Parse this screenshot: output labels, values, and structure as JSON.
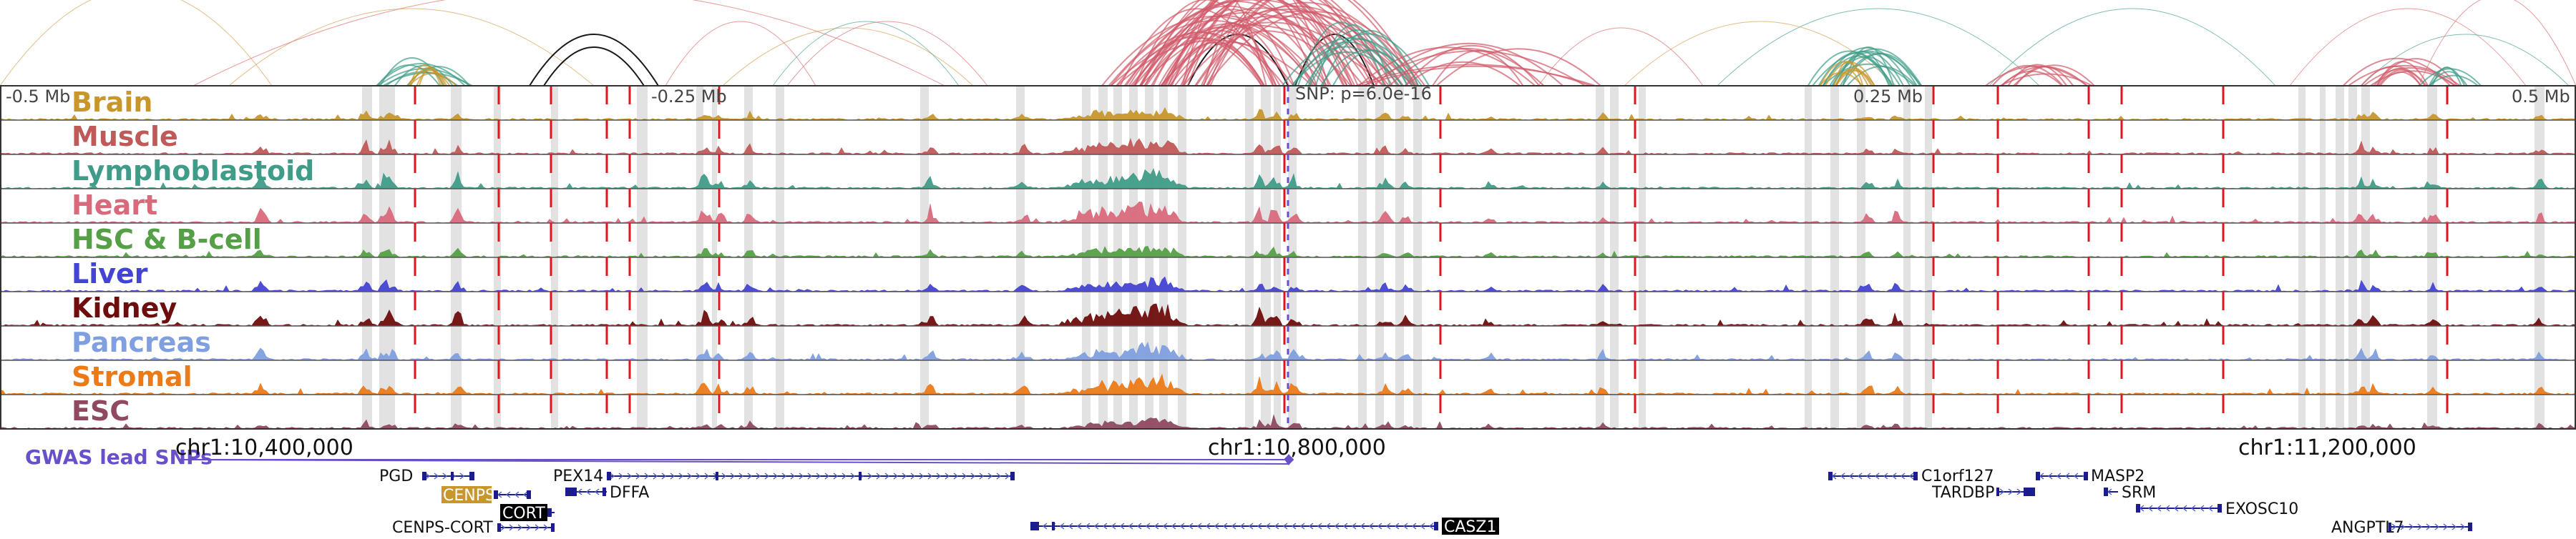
{
  "scale_labels": {
    "left": "-0.5 Mb",
    "mid_left": "-0.25 Mb",
    "snp": "SNP: p=6.0e-16",
    "mid_right": "0.25 Mb",
    "right": "0.5 Mb"
  },
  "tracks": [
    {
      "label": "Brain",
      "color": "#c8962a"
    },
    {
      "label": "Muscle",
      "color": "#c05a58"
    },
    {
      "label": "Lymphoblastoid",
      "color": "#3f9c88"
    },
    {
      "label": "Heart",
      "color": "#d96a7c"
    },
    {
      "label": "HSC & B-cell",
      "color": "#55a046"
    },
    {
      "label": "Liver",
      "color": "#4343d6"
    },
    {
      "label": "Kidney",
      "color": "#6e0d0d"
    },
    {
      "label": "Pancreas",
      "color": "#7f9fe0"
    },
    {
      "label": "Stromal",
      "color": "#ec7a17"
    },
    {
      "label": "ESC",
      "color": "#8f4a62"
    }
  ],
  "gwas_label": "GWAS lead SNPs",
  "coordinates": [
    "chr1:10,400,000",
    "chr1:10,800,000",
    "chr1:11,200,000"
  ],
  "genes": [
    {
      "name": "PGD",
      "highlight": false
    },
    {
      "name": "CENPS",
      "highlight": true,
      "highlight_color": "#c8962a"
    },
    {
      "name": "CORT",
      "highlight": true,
      "highlight_color": "#000000"
    },
    {
      "name": "CENPS-CORT",
      "highlight": false
    },
    {
      "name": "PEX14",
      "highlight": false
    },
    {
      "name": "DFFA",
      "highlight": false
    },
    {
      "name": "CASZ1",
      "highlight": true,
      "highlight_color": "#000000"
    },
    {
      "name": "C1orf127",
      "highlight": false
    },
    {
      "name": "TARDBP",
      "highlight": false
    },
    {
      "name": "MASP2",
      "highlight": false
    },
    {
      "name": "SRM",
      "highlight": false
    },
    {
      "name": "EXOSC10",
      "highlight": false
    },
    {
      "name": "ANGPTL7",
      "highlight": false
    }
  ],
  "colors": {
    "red_marker": "#e0141e",
    "grey_band": "#e2e2e2",
    "gene": "#1c1c8c",
    "gwas": "#6a50c8",
    "strand_arrow": "#5060c8"
  }
}
